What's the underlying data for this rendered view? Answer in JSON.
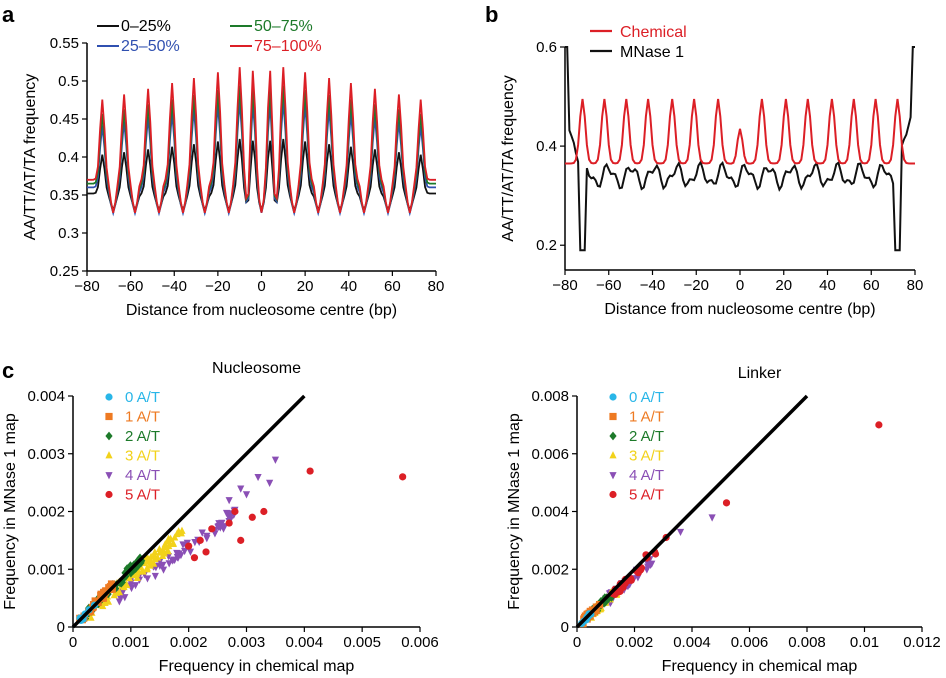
{
  "panels": {
    "a": "a",
    "b": "b",
    "c": "c"
  },
  "chart_data": [
    {
      "id": "a",
      "type": "line",
      "title": "",
      "xlabel": "Distance from nucleosome centre (bp)",
      "ylabel": "AA/TT/AT/TA frequency",
      "xlim": [
        -80,
        80
      ],
      "ylim": [
        0.25,
        0.55
      ],
      "xticks": [
        -80,
        -60,
        -40,
        -20,
        0,
        20,
        40,
        60,
        80
      ],
      "yticks": [
        0.25,
        0.3,
        0.35,
        0.4,
        0.45,
        0.5,
        0.55
      ],
      "ytick_labels": [
        "0.25",
        "0.3",
        "0.35",
        "0.4",
        "0.45",
        "0.5",
        "0.55"
      ],
      "legend_position": "top-left",
      "series": [
        {
          "name": "0–25%",
          "color": "#111111",
          "base": 0.352,
          "amp": 0.075
        },
        {
          "name": "25–50%",
          "color": "#3050b0",
          "base": 0.36,
          "amp": 0.12
        },
        {
          "name": "50–75%",
          "color": "#1d7a2a",
          "base": 0.365,
          "amp": 0.135
        },
        {
          "name": "75–100%",
          "color": "#dc1f26",
          "base": 0.37,
          "amp": 0.155
        }
      ],
      "peak_positions": [
        -73,
        -63,
        -52,
        -41,
        -31,
        -20,
        -10,
        -4,
        4,
        10,
        20,
        31,
        41,
        52,
        63,
        73
      ],
      "trough_positions": [
        -68,
        -58,
        -47,
        -36,
        -26,
        -15,
        -6,
        0,
        6,
        15,
        26,
        36,
        47,
        58,
        68
      ]
    },
    {
      "id": "b",
      "type": "line",
      "title": "",
      "xlabel": "Distance from nucleosome centre (bp)",
      "ylabel": "AA/TT/AT/TA frequency",
      "xlim": [
        -80,
        80
      ],
      "ylim": [
        0.15,
        0.6
      ],
      "xticks": [
        -80,
        -60,
        -40,
        -20,
        0,
        20,
        40,
        60,
        80
      ],
      "yticks": [
        0.2,
        0.4,
        0.6
      ],
      "ytick_labels": [
        "0.2",
        "0.4",
        "0.6"
      ],
      "legend_position": "top-left",
      "series": [
        {
          "name": "Chemical",
          "color": "#dc1f26"
        },
        {
          "name": "MNase 1",
          "color": "#111111"
        }
      ]
    },
    {
      "id": "c-nucleosome",
      "type": "scatter",
      "title": "Nucleosome",
      "xlabel": "Frequency in chemical map",
      "ylabel": "Frequency in MNase 1 map",
      "xlim": [
        0,
        0.006
      ],
      "ylim": [
        0,
        0.004
      ],
      "xticks": [
        0,
        0.001,
        0.002,
        0.003,
        0.004,
        0.005,
        0.006
      ],
      "xtick_labels": [
        "0",
        "0.001",
        "0.002",
        "0.003",
        "0.004",
        "0.005",
        "0.006"
      ],
      "yticks": [
        0,
        0.001,
        0.002,
        0.003,
        0.004
      ],
      "ytick_labels": [
        "0",
        "0.001",
        "0.002",
        "0.003",
        "0.004"
      ],
      "diagonal": [
        [
          0,
          0
        ],
        [
          0.004,
          0.004
        ]
      ],
      "legend_position": "top-left",
      "series": [
        {
          "name": "0 A/T",
          "color": "#29b6e8",
          "marker": "circle"
        },
        {
          "name": "1 A/T",
          "color": "#ee7a22",
          "marker": "square"
        },
        {
          "name": "2 A/T",
          "color": "#1d7a2a",
          "marker": "diamond"
        },
        {
          "name": "3 A/T",
          "color": "#f2d21a",
          "marker": "triangle-up"
        },
        {
          "name": "4 A/T",
          "color": "#8a4fb5",
          "marker": "triangle-down"
        },
        {
          "name": "5 A/T",
          "color": "#dc1f26",
          "marker": "circle"
        }
      ],
      "outliers": [
        {
          "series": "5 A/T",
          "x": 0.0057,
          "y": 0.0026
        },
        {
          "series": "5 A/T",
          "x": 0.0041,
          "y": 0.0027
        },
        {
          "series": "5 A/T",
          "x": 0.0033,
          "y": 0.002
        },
        {
          "series": "5 A/T",
          "x": 0.0031,
          "y": 0.0019
        },
        {
          "series": "5 A/T",
          "x": 0.0029,
          "y": 0.0015
        },
        {
          "series": "5 A/T",
          "x": 0.0028,
          "y": 0.002
        },
        {
          "series": "5 A/T",
          "x": 0.0027,
          "y": 0.0018
        },
        {
          "series": "5 A/T",
          "x": 0.0024,
          "y": 0.0017
        },
        {
          "series": "5 A/T",
          "x": 0.0023,
          "y": 0.0013
        },
        {
          "series": "5 A/T",
          "x": 0.0022,
          "y": 0.0015
        },
        {
          "series": "5 A/T",
          "x": 0.0021,
          "y": 0.0012
        },
        {
          "series": "5 A/T",
          "x": 0.002,
          "y": 0.0014
        },
        {
          "series": "4 A/T",
          "x": 0.0035,
          "y": 0.0029
        },
        {
          "series": "4 A/T",
          "x": 0.0034,
          "y": 0.0025
        },
        {
          "series": "4 A/T",
          "x": 0.0032,
          "y": 0.0026
        },
        {
          "series": "4 A/T",
          "x": 0.003,
          "y": 0.0023
        },
        {
          "series": "4 A/T",
          "x": 0.0029,
          "y": 0.0024
        },
        {
          "series": "4 A/T",
          "x": 0.0027,
          "y": 0.0022
        }
      ]
    },
    {
      "id": "c-linker",
      "type": "scatter",
      "title": "Linker",
      "xlabel": "Frequency in chemical map",
      "ylabel": "Frequency in MNase 1 map",
      "xlim": [
        0,
        0.012
      ],
      "ylim": [
        0,
        0.008
      ],
      "xticks": [
        0,
        0.002,
        0.004,
        0.006,
        0.008,
        0.01,
        0.012
      ],
      "xtick_labels": [
        "0",
        "0.002",
        "0.004",
        "0.006",
        "0.008",
        "0.01",
        "0.012"
      ],
      "yticks": [
        0,
        0.002,
        0.004,
        0.006,
        0.008
      ],
      "ytick_labels": [
        "0",
        "0.002",
        "0.004",
        "0.006",
        "0.008"
      ],
      "diagonal": [
        [
          0,
          0
        ],
        [
          0.008,
          0.008
        ]
      ],
      "legend_position": "top-left",
      "series": [
        {
          "name": "0 A/T",
          "color": "#29b6e8",
          "marker": "circle"
        },
        {
          "name": "1 A/T",
          "color": "#ee7a22",
          "marker": "square"
        },
        {
          "name": "2 A/T",
          "color": "#1d7a2a",
          "marker": "diamond"
        },
        {
          "name": "3 A/T",
          "color": "#f2d21a",
          "marker": "triangle-up"
        },
        {
          "name": "4 A/T",
          "color": "#8a4fb5",
          "marker": "triangle-down"
        },
        {
          "name": "5 A/T",
          "color": "#dc1f26",
          "marker": "circle"
        }
      ],
      "outliers": [
        {
          "series": "5 A/T",
          "x": 0.0105,
          "y": 0.007
        },
        {
          "series": "5 A/T",
          "x": 0.0052,
          "y": 0.0043
        },
        {
          "series": "5 A/T",
          "x": 0.0031,
          "y": 0.0031
        },
        {
          "series": "4 A/T",
          "x": 0.0047,
          "y": 0.0038
        },
        {
          "series": "4 A/T",
          "x": 0.0036,
          "y": 0.0033
        },
        {
          "series": "5 A/T",
          "x": 0.0027,
          "y": 0.0026
        },
        {
          "series": "5 A/T",
          "x": 0.0024,
          "y": 0.0025
        },
        {
          "series": "4 A/T",
          "x": 0.0026,
          "y": 0.0022
        }
      ]
    }
  ]
}
